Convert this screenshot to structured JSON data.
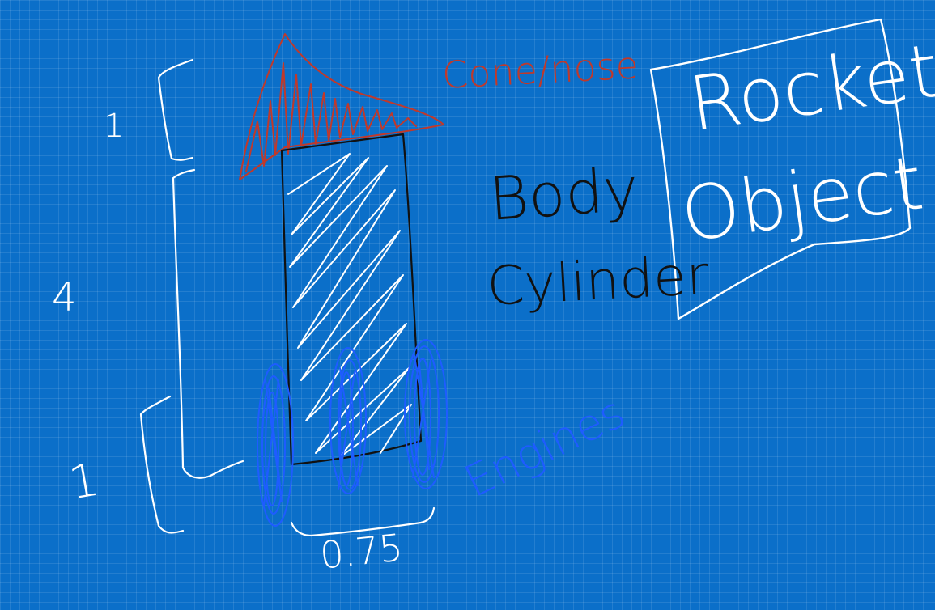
{
  "labels": {
    "cone": "Cone/nose",
    "body_line1": "Body",
    "body_line2": "Cylinder",
    "rocket_line1": "Rocket",
    "rocket_line2": "Object",
    "engines": "Engines",
    "dim_cone": "1",
    "dim_body": "4",
    "dim_engines": "1",
    "dim_width": "0.75"
  },
  "colors": {
    "background": "#0b6fc9",
    "ink_white": "#ffffff",
    "ink_black": "#111111",
    "ink_red": "#c0392b",
    "ink_blue": "#1e5cff"
  }
}
